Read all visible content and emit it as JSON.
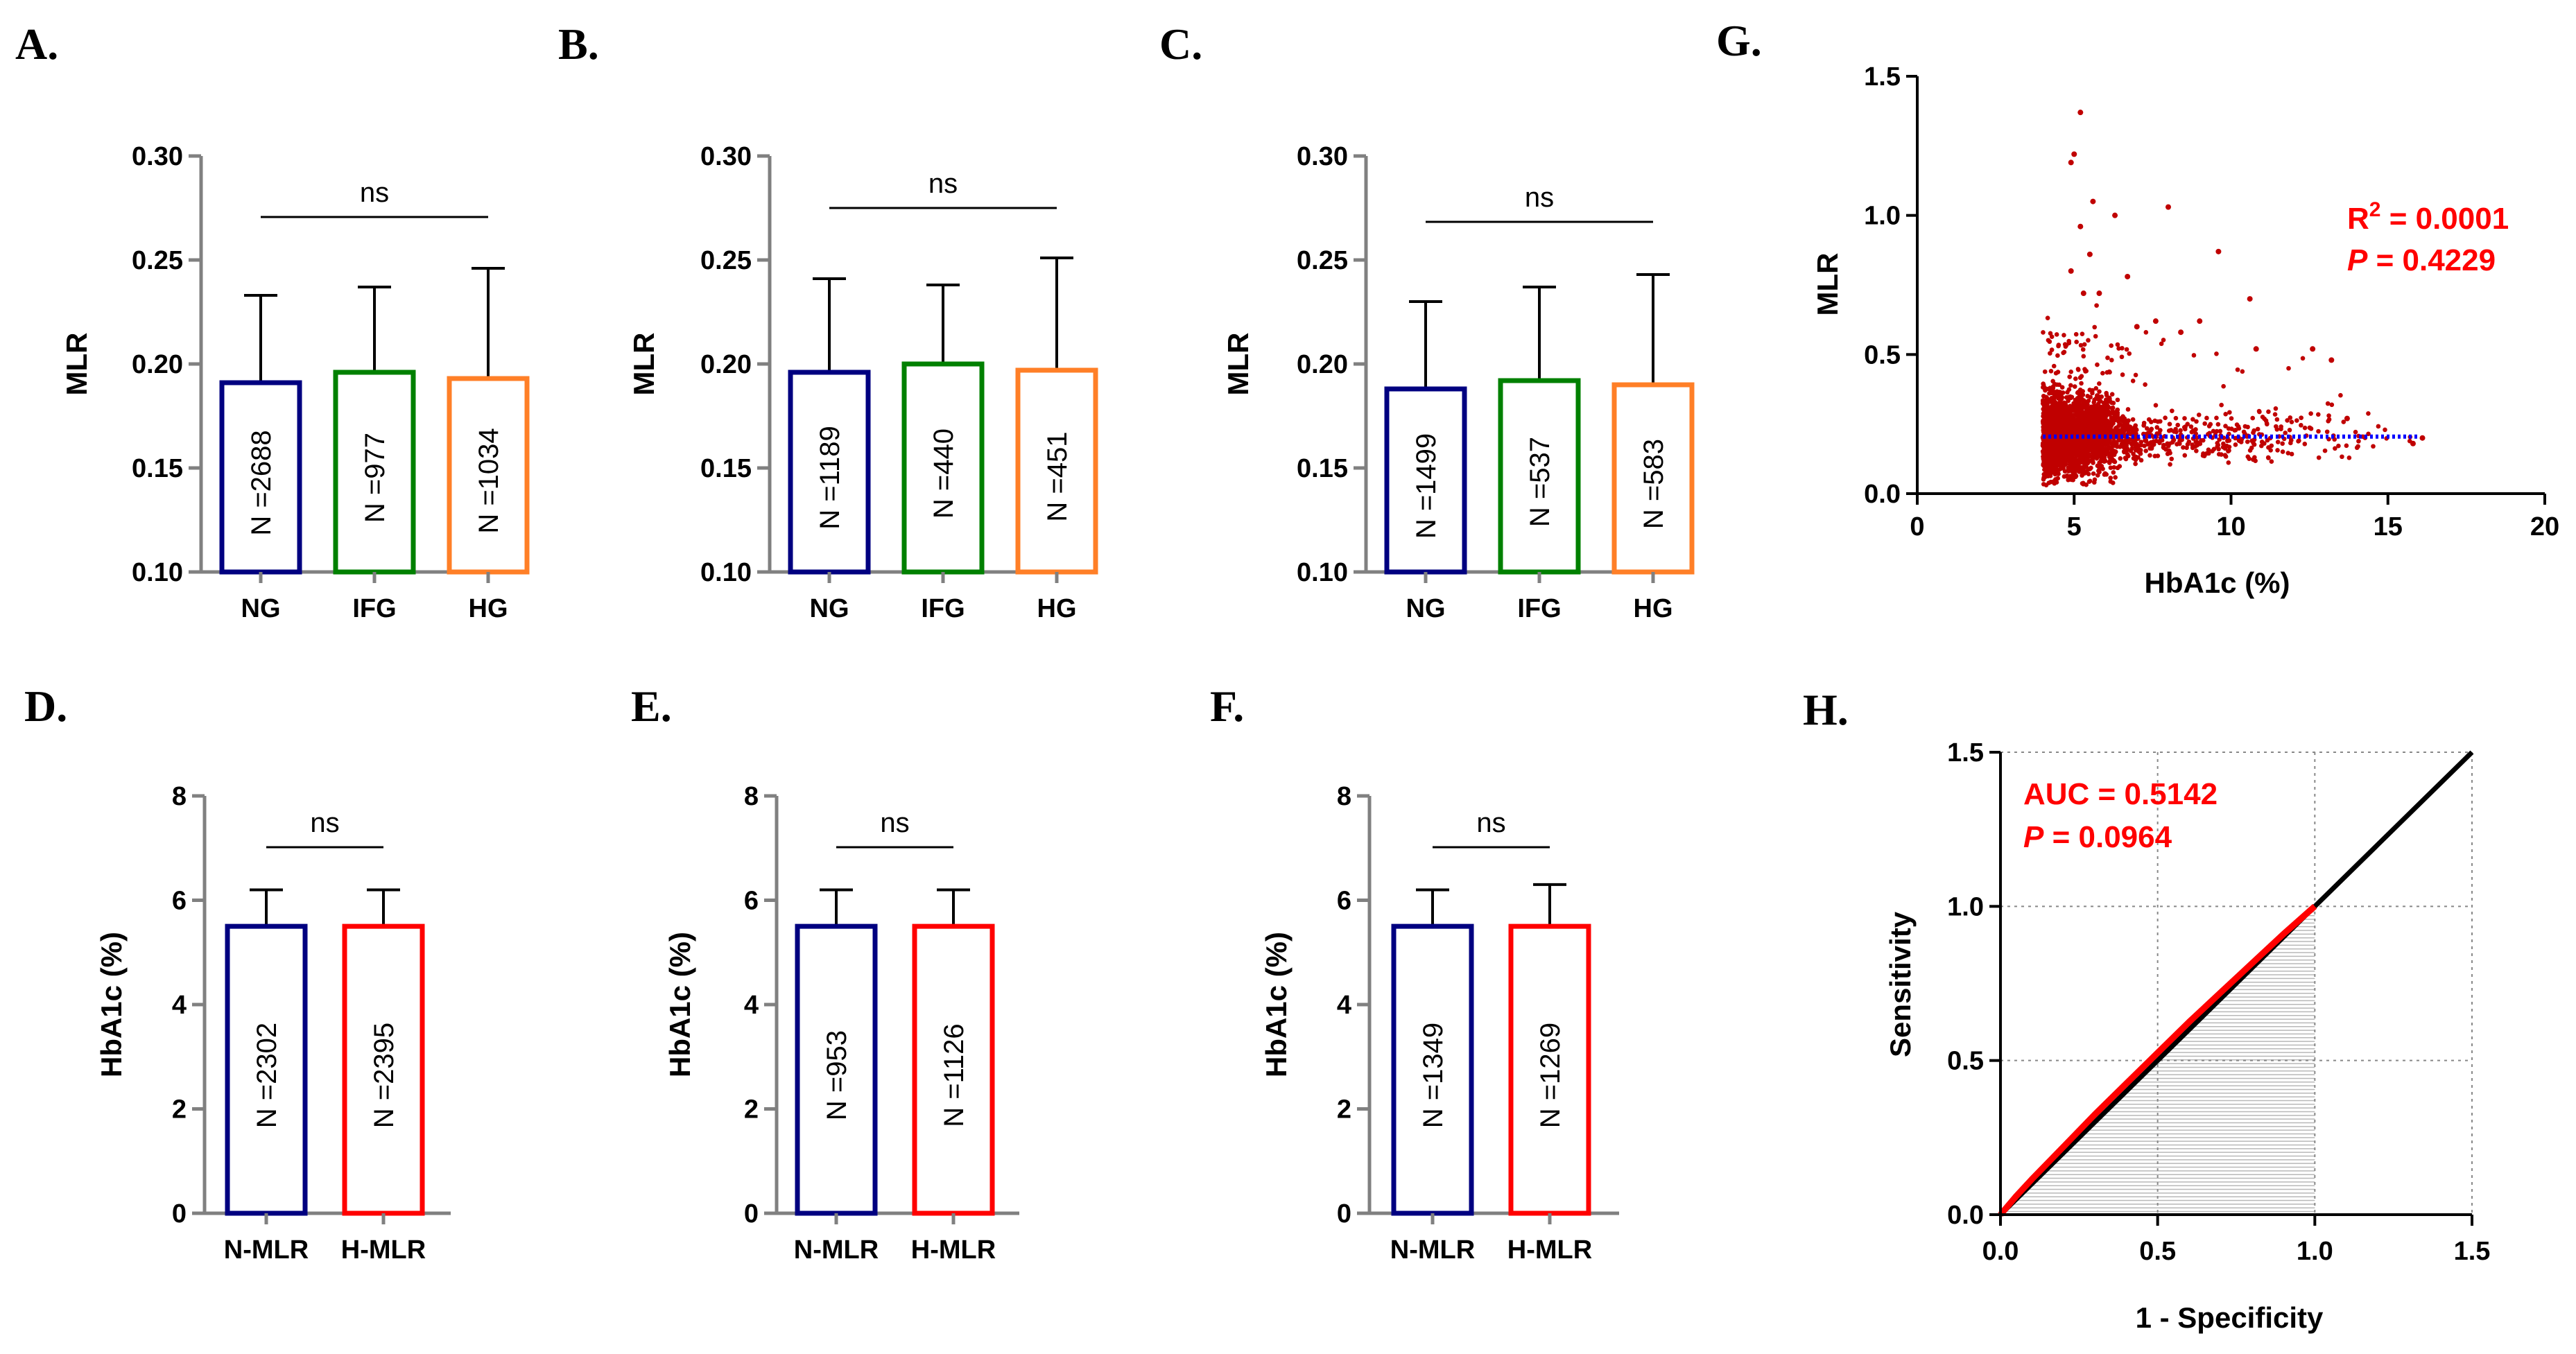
{
  "colors": {
    "navy": "#000080",
    "green": "#008000",
    "orange": "#ff7f27",
    "red": "#ff0000",
    "blue": "#0000ff",
    "scatter": "#c00000",
    "axis": "#808080"
  },
  "chart_data": [
    {
      "id": "A",
      "letter": "A.",
      "type": "bar",
      "categories": [
        "NG",
        "IFG",
        "HG"
      ],
      "values": [
        0.191,
        0.196,
        0.193
      ],
      "sd_upper": [
        0.233,
        0.237,
        0.246
      ],
      "n_labels": [
        "N =2688",
        "N =977",
        "N =1034"
      ],
      "series_colors": [
        "navy",
        "green",
        "orange"
      ],
      "ylabel": "MLR",
      "ylim": [
        0.1,
        0.3
      ],
      "yticks": [
        "0.10",
        "0.15",
        "0.20",
        "0.25",
        "0.30"
      ],
      "sig": "ns"
    },
    {
      "id": "B",
      "letter": "B.",
      "type": "bar",
      "categories": [
        "NG",
        "IFG",
        "HG"
      ],
      "values": [
        0.196,
        0.2,
        0.197
      ],
      "sd_upper": [
        0.241,
        0.238,
        0.251
      ],
      "n_labels": [
        "N =1189",
        "N =440",
        "N =451"
      ],
      "series_colors": [
        "navy",
        "green",
        "orange"
      ],
      "ylabel": "MLR",
      "ylim": [
        0.1,
        0.3
      ],
      "yticks": [
        "0.10",
        "0.15",
        "0.20",
        "0.25",
        "0.30"
      ],
      "sig": "ns"
    },
    {
      "id": "C",
      "letter": "C.",
      "type": "bar",
      "categories": [
        "NG",
        "IFG",
        "HG"
      ],
      "values": [
        0.188,
        0.192,
        0.19
      ],
      "sd_upper": [
        0.23,
        0.237,
        0.243
      ],
      "n_labels": [
        "N =1499",
        "N =537",
        "N =583"
      ],
      "series_colors": [
        "navy",
        "green",
        "orange"
      ],
      "ylabel": "MLR",
      "ylim": [
        0.1,
        0.3
      ],
      "yticks": [
        "0.10",
        "0.15",
        "0.20",
        "0.25",
        "0.30"
      ],
      "sig": "ns"
    },
    {
      "id": "D",
      "letter": "D.",
      "type": "bar",
      "categories": [
        "N-MLR",
        "H-MLR"
      ],
      "values": [
        5.5,
        5.5
      ],
      "sd_upper": [
        6.2,
        6.2
      ],
      "n_labels": [
        "N =2302",
        "N =2395"
      ],
      "series_colors": [
        "navy",
        "red"
      ],
      "ylabel": "HbA1c (%)",
      "ylim": [
        0,
        8
      ],
      "yticks": [
        "0",
        "2",
        "4",
        "6",
        "8"
      ],
      "sig": "ns"
    },
    {
      "id": "E",
      "letter": "E.",
      "type": "bar",
      "categories": [
        "N-MLR",
        "H-MLR"
      ],
      "values": [
        5.5,
        5.5
      ],
      "sd_upper": [
        6.2,
        6.2
      ],
      "n_labels": [
        "N =953",
        "N =1126"
      ],
      "series_colors": [
        "navy",
        "red"
      ],
      "ylabel": "HbA1c (%)",
      "ylim": [
        0,
        8
      ],
      "yticks": [
        "0",
        "2",
        "4",
        "6",
        "8"
      ],
      "sig": "ns"
    },
    {
      "id": "F",
      "letter": "F.",
      "type": "bar",
      "categories": [
        "N-MLR",
        "H-MLR"
      ],
      "values": [
        5.5,
        5.5
      ],
      "sd_upper": [
        6.2,
        6.3
      ],
      "n_labels": [
        "N =1349",
        "N =1269"
      ],
      "series_colors": [
        "navy",
        "red"
      ],
      "ylabel": "HbA1c (%)",
      "ylim": [
        0,
        8
      ],
      "yticks": [
        "0",
        "2",
        "4",
        "6",
        "8"
      ],
      "sig": "ns"
    },
    {
      "id": "G",
      "letter": "G.",
      "type": "scatter",
      "xlabel": "HbA1c (%)",
      "ylabel": "MLR",
      "xlim": [
        0,
        20
      ],
      "ylim": [
        0,
        1.5
      ],
      "xticks": [
        "0",
        "5",
        "10",
        "15",
        "20"
      ],
      "yticks": [
        "0.0",
        "0.5",
        "1.0",
        "1.5"
      ],
      "fit_line": {
        "x": [
          4,
          16
        ],
        "y": [
          0.205,
          0.205
        ]
      },
      "r2_prefix": "R",
      "r2_exp": "2",
      "r2_value": " = 0.0001",
      "p_prefix": "P",
      "p_value": " = 0.4229",
      "outliers": [
        [
          5.2,
          1.37
        ],
        [
          5.0,
          1.22
        ],
        [
          4.9,
          1.19
        ],
        [
          5.6,
          1.05
        ],
        [
          8.0,
          1.03
        ],
        [
          6.3,
          1.0
        ],
        [
          5.2,
          0.96
        ],
        [
          5.5,
          0.86
        ],
        [
          9.6,
          0.87
        ],
        [
          4.9,
          0.8
        ],
        [
          5.3,
          0.72
        ],
        [
          7.6,
          0.62
        ],
        [
          7.0,
          0.6
        ],
        [
          10.6,
          0.7
        ],
        [
          9.0,
          0.62
        ],
        [
          8.4,
          0.58
        ],
        [
          5.8,
          0.72
        ],
        [
          10.8,
          0.52
        ],
        [
          12.6,
          0.52
        ],
        [
          13.7,
          0.27
        ],
        [
          15.8,
          0.18
        ],
        [
          16.1,
          0.2
        ],
        [
          13.2,
          0.48
        ],
        [
          6.7,
          0.78
        ]
      ]
    },
    {
      "id": "H",
      "letter": "H.",
      "type": "line",
      "xlabel": "1 - Specificity",
      "ylabel": "Sensitivity",
      "xlim": [
        0,
        1.5
      ],
      "ylim": [
        0,
        1.5
      ],
      "xticks": [
        "0.0",
        "0.5",
        "1.0",
        "1.5"
      ],
      "yticks": [
        "0.0",
        "0.5",
        "1.0",
        "1.5"
      ],
      "diagonal": [
        [
          0,
          0
        ],
        [
          1.5,
          1.5
        ]
      ],
      "roc_curve": [
        [
          0,
          0
        ],
        [
          0.05,
          0.06
        ],
        [
          0.1,
          0.115
        ],
        [
          0.2,
          0.22
        ],
        [
          0.3,
          0.325
        ],
        [
          0.4,
          0.425
        ],
        [
          0.5,
          0.525
        ],
        [
          0.6,
          0.625
        ],
        [
          0.7,
          0.72
        ],
        [
          0.8,
          0.815
        ],
        [
          0.9,
          0.91
        ],
        [
          1.0,
          1.0
        ]
      ],
      "auc_text": "AUC = 0.5142",
      "p_prefix": "P",
      "p_value": " = 0.0964"
    }
  ]
}
